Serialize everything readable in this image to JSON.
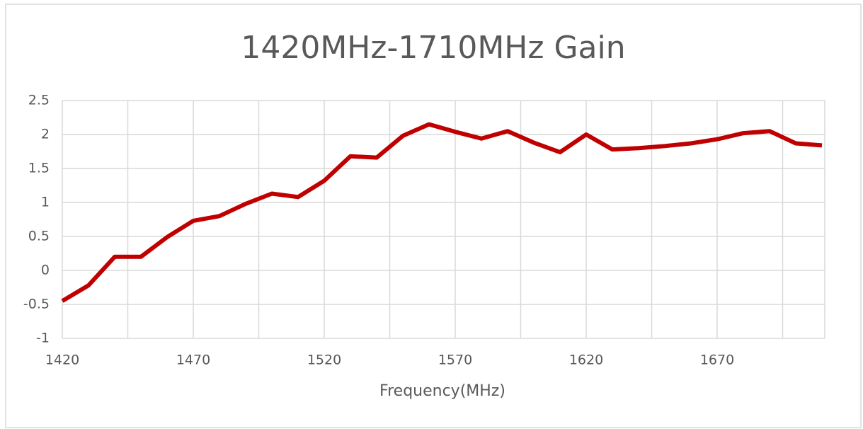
{
  "chart_data": {
    "type": "line",
    "title": "1420MHz-1710MHz Gain",
    "x_label": "Frequency(MHz)",
    "x": [
      1420,
      1430,
      1440,
      1450,
      1460,
      1470,
      1480,
      1490,
      1500,
      1510,
      1520,
      1530,
      1540,
      1550,
      1560,
      1570,
      1580,
      1590,
      1600,
      1610,
      1620,
      1630,
      1640,
      1650,
      1660,
      1670,
      1680,
      1690,
      1700,
      1710
    ],
    "series": [
      {
        "name": "Gain",
        "color": "#c00000",
        "values": [
          -0.45,
          -0.22,
          0.2,
          0.2,
          0.49,
          0.73,
          0.8,
          0.98,
          1.13,
          1.08,
          1.32,
          1.68,
          1.66,
          1.98,
          2.15,
          2.04,
          1.94,
          2.05,
          1.88,
          1.74,
          2.0,
          1.78,
          1.8,
          1.83,
          1.87,
          1.93,
          2.02,
          2.05,
          1.87,
          1.84
        ]
      }
    ],
    "xlim": [
      1420,
      1710
    ],
    "xticks": [
      1420,
      1470,
      1520,
      1570,
      1620,
      1670
    ],
    "xminor": [
      1445,
      1495,
      1545,
      1595,
      1645,
      1695
    ],
    "ylim": [
      -1,
      2.5
    ],
    "yticks": [
      2.5,
      2,
      1.5,
      1,
      0.5,
      0,
      -0.5,
      -1
    ],
    "grid": true
  }
}
